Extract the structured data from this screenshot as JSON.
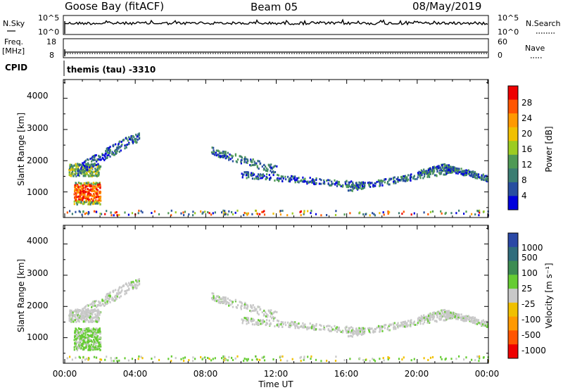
{
  "header": {
    "station": "Goose Bay (fitACF)",
    "beam": "Beam 05",
    "date": "08/May/2019"
  },
  "panels": {
    "nsky_label": "N.Sky",
    "nsky_ticks": [
      "10^5",
      "10^0"
    ],
    "nsearch_label": "N.Search",
    "nsearch_ticks": [
      "10^5",
      "10^0"
    ],
    "freq_label_top": "Freq.",
    "freq_label_unit": "[MHz]",
    "freq_ticks": [
      "18",
      "8"
    ],
    "nave_label": "Nave",
    "nave_ticks": [
      "60",
      "0"
    ],
    "cpid_label": "CPID",
    "cpid_value": "themis (tau) -3310"
  },
  "colorbars": {
    "power": {
      "label": "Power [dB]",
      "ticks": [
        "28",
        "24",
        "20",
        "16",
        "12",
        "8",
        "4"
      ],
      "colors": [
        "#ee0000",
        "#ff5500",
        "#ff9900",
        "#f0c000",
        "#9ccc22",
        "#4f9a55",
        "#3b7d72",
        "#284ea0",
        "#0000dd"
      ]
    },
    "velocity": {
      "label": "Velocity [m s⁻¹]",
      "ticks": [
        "1000",
        "500",
        "100",
        "25",
        "-25",
        "-100",
        "-500",
        "-1000"
      ],
      "colors": [
        "#2a48a6",
        "#2f6c7c",
        "#3c8c52",
        "#66cc33",
        "#c8c8c8",
        "#f0c000",
        "#ff9900",
        "#ff5500",
        "#ee0000"
      ]
    }
  },
  "chart_data": [
    {
      "type": "heatmap",
      "name": "power",
      "ylabel": "Slant Range [km]",
      "ylim": [
        180,
        4600
      ],
      "yticks": [
        "4000",
        "3000",
        "2000",
        "1000"
      ],
      "xlim": [
        0,
        24
      ],
      "xticks": [
        "00:00",
        "04:00",
        "08:00",
        "12:00",
        "16:00",
        "20:00",
        "00:00"
      ],
      "scatter_regions_hours_km": [
        [
          0.2,
          2.0,
          1500,
          1900
        ],
        [
          0.5,
          2.0,
          600,
          1300
        ],
        [
          0.7,
          4.2,
          1700,
          2900
        ],
        [
          8.3,
          12.0,
          1600,
          2400
        ],
        [
          10.0,
          17.0,
          1050,
          1600
        ],
        [
          16.0,
          22.0,
          950,
          1700
        ],
        [
          20.0,
          24.0,
          1350,
          2000
        ],
        [
          0.0,
          24.0,
          250,
          400
        ]
      ]
    },
    {
      "type": "heatmap",
      "name": "velocity",
      "ylabel": "Slant Range [km]",
      "ylim": [
        180,
        4600
      ],
      "yticks": [
        "4000",
        "3000",
        "2000",
        "1000"
      ],
      "xlim": [
        0,
        24
      ],
      "xticks": [
        "00:00",
        "04:00",
        "08:00",
        "12:00",
        "16:00",
        "20:00",
        "00:00"
      ],
      "xlabel": "Time UT"
    }
  ]
}
